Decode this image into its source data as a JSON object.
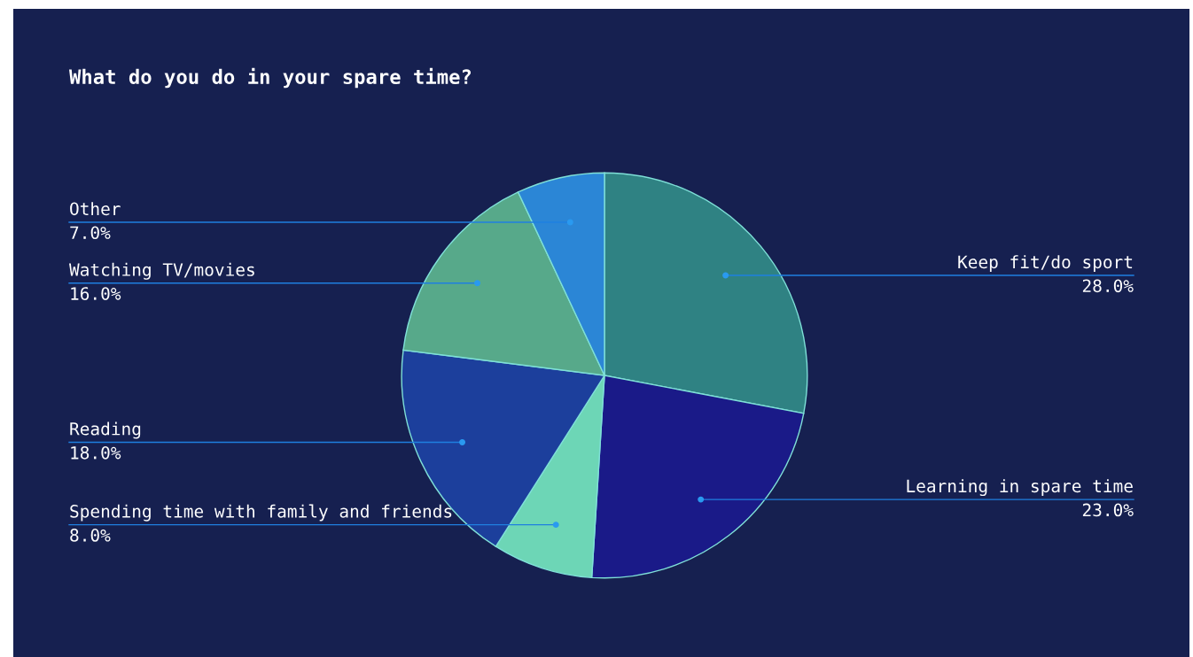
{
  "chart_data": {
    "type": "pie",
    "title": "What do you do in your spare time?",
    "categories": [
      "Keep fit/do sport",
      "Learning in spare time",
      "Spending time with family and friends",
      "Reading",
      "Watching TV/movies",
      "Other"
    ],
    "values": [
      28,
      23,
      8,
      18,
      16,
      7
    ],
    "value_labels": [
      "28.0%",
      "23.0%",
      "8.0%",
      "18.0%",
      "16.0%",
      "7.0%"
    ],
    "colors": [
      "#2f8283",
      "#1a1a88",
      "#6dd6b6",
      "#1c3f9c",
      "#57a98a",
      "#2b86d6"
    ],
    "legend": false
  }
}
